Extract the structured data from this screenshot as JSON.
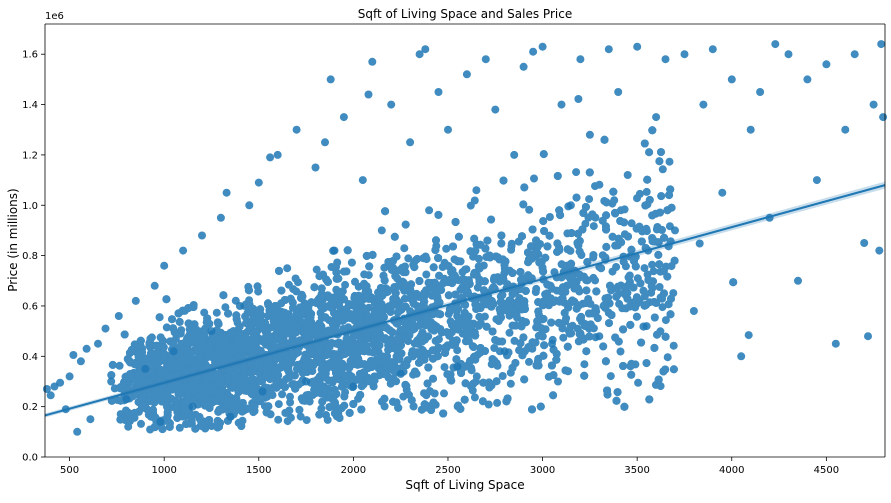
{
  "chart_data": {
    "type": "scatter",
    "title": "Sqft of Living Space and Sales Price",
    "xlabel": "Sqft of Living Space",
    "ylabel": "Price (in millions)",
    "y_offset_text": "1e6",
    "xlim": [
      370,
      4810
    ],
    "ylim": [
      0,
      1720000
    ],
    "x_ticks": [
      500,
      1000,
      1500,
      2000,
      2500,
      3000,
      3500,
      4000,
      4500
    ],
    "x_tick_labels": [
      "500",
      "1000",
      "1500",
      "2000",
      "2500",
      "3000",
      "3500",
      "4000",
      "4500"
    ],
    "y_ticks": [
      0,
      200000,
      400000,
      600000,
      800000,
      1000000,
      1200000,
      1400000,
      1600000
    ],
    "y_tick_labels": [
      "0.0",
      "0.2",
      "0.4",
      "0.6",
      "0.8",
      "1.0",
      "1.2",
      "1.4",
      "1.6"
    ],
    "grid": false,
    "legend": "none",
    "colors": {
      "points": "#1f77b4",
      "line": "#1f77b4",
      "band": "#1f77b4"
    },
    "regression_line": {
      "x": [
        370,
        4810
      ],
      "y": [
        165000,
        1080000
      ]
    },
    "points": [
      [
        380,
        270000
      ],
      [
        400,
        245000
      ],
      [
        420,
        280000
      ],
      [
        450,
        295000
      ],
      [
        480,
        190000
      ],
      [
        500,
        320000
      ],
      [
        520,
        405000
      ],
      [
        540,
        100000
      ],
      [
        560,
        380000
      ],
      [
        590,
        430000
      ],
      [
        610,
        150000
      ],
      [
        650,
        450000
      ],
      [
        690,
        510000
      ],
      [
        720,
        300000
      ],
      [
        760,
        560000
      ],
      [
        800,
        230000
      ],
      [
        850,
        620000
      ],
      [
        900,
        350000
      ],
      [
        950,
        680000
      ],
      [
        980,
        140000
      ],
      [
        1000,
        760000
      ],
      [
        1050,
        420000
      ],
      [
        1100,
        820000
      ],
      [
        1150,
        200000
      ],
      [
        1200,
        880000
      ],
      [
        1250,
        500000
      ],
      [
        1300,
        950000
      ],
      [
        1330,
        1050000
      ],
      [
        1350,
        160000
      ],
      [
        1400,
        600000
      ],
      [
        1450,
        1000000
      ],
      [
        1500,
        1090000
      ],
      [
        1520,
        260000
      ],
      [
        1560,
        1190000
      ],
      [
        1600,
        1200000
      ],
      [
        1650,
        750000
      ],
      [
        1700,
        1300000
      ],
      [
        1750,
        300000
      ],
      [
        1800,
        1150000
      ],
      [
        1850,
        1250000
      ],
      [
        1880,
        1500000
      ],
      [
        1900,
        820000
      ],
      [
        1950,
        1350000
      ],
      [
        2000,
        280000
      ],
      [
        2050,
        1100000
      ],
      [
        2080,
        1440000
      ],
      [
        2100,
        1570000
      ],
      [
        2150,
        900000
      ],
      [
        2200,
        1400000
      ],
      [
        2250,
        330000
      ],
      [
        2300,
        1250000
      ],
      [
        2350,
        1600000
      ],
      [
        2380,
        1620000
      ],
      [
        2400,
        980000
      ],
      [
        2450,
        1450000
      ],
      [
        2500,
        1300000
      ],
      [
        2550,
        360000
      ],
      [
        2600,
        1520000
      ],
      [
        2650,
        1060000
      ],
      [
        2700,
        1580000
      ],
      [
        2750,
        1380000
      ],
      [
        2800,
        420000
      ],
      [
        2850,
        1200000
      ],
      [
        2900,
        1550000
      ],
      [
        2950,
        1610000
      ],
      [
        3000,
        1630000
      ],
      [
        3050,
        450000
      ],
      [
        3100,
        1400000
      ],
      [
        3150,
        1000000
      ],
      [
        3200,
        1580000
      ],
      [
        3250,
        1280000
      ],
      [
        3300,
        480000
      ],
      [
        3350,
        1620000
      ],
      [
        3400,
        1450000
      ],
      [
        3450,
        1120000
      ],
      [
        3500,
        1630000
      ],
      [
        3550,
        520000
      ],
      [
        3600,
        1350000
      ],
      [
        3650,
        1580000
      ],
      [
        3700,
        900000
      ],
      [
        3750,
        1600000
      ],
      [
        3800,
        580000
      ],
      [
        3850,
        1400000
      ],
      [
        3900,
        1620000
      ],
      [
        3950,
        1050000
      ],
      [
        4000,
        1500000
      ],
      [
        4050,
        400000
      ],
      [
        4100,
        1300000
      ],
      [
        4150,
        1450000
      ],
      [
        4200,
        950000
      ],
      [
        4230,
        1640000
      ],
      [
        4300,
        1600000
      ],
      [
        4350,
        700000
      ],
      [
        4400,
        1500000
      ],
      [
        4450,
        1100000
      ],
      [
        4500,
        1560000
      ],
      [
        4550,
        450000
      ],
      [
        4600,
        1300000
      ],
      [
        4650,
        1600000
      ],
      [
        4700,
        850000
      ],
      [
        4750,
        1400000
      ],
      [
        4790,
        1640000
      ],
      [
        4800,
        1350000
      ],
      [
        4780,
        820000
      ],
      [
        4720,
        480000
      ]
    ],
    "density_note": "dense cloud of several thousand points concentrated between 600-3300 sqft and 0.1-1.0 million"
  }
}
